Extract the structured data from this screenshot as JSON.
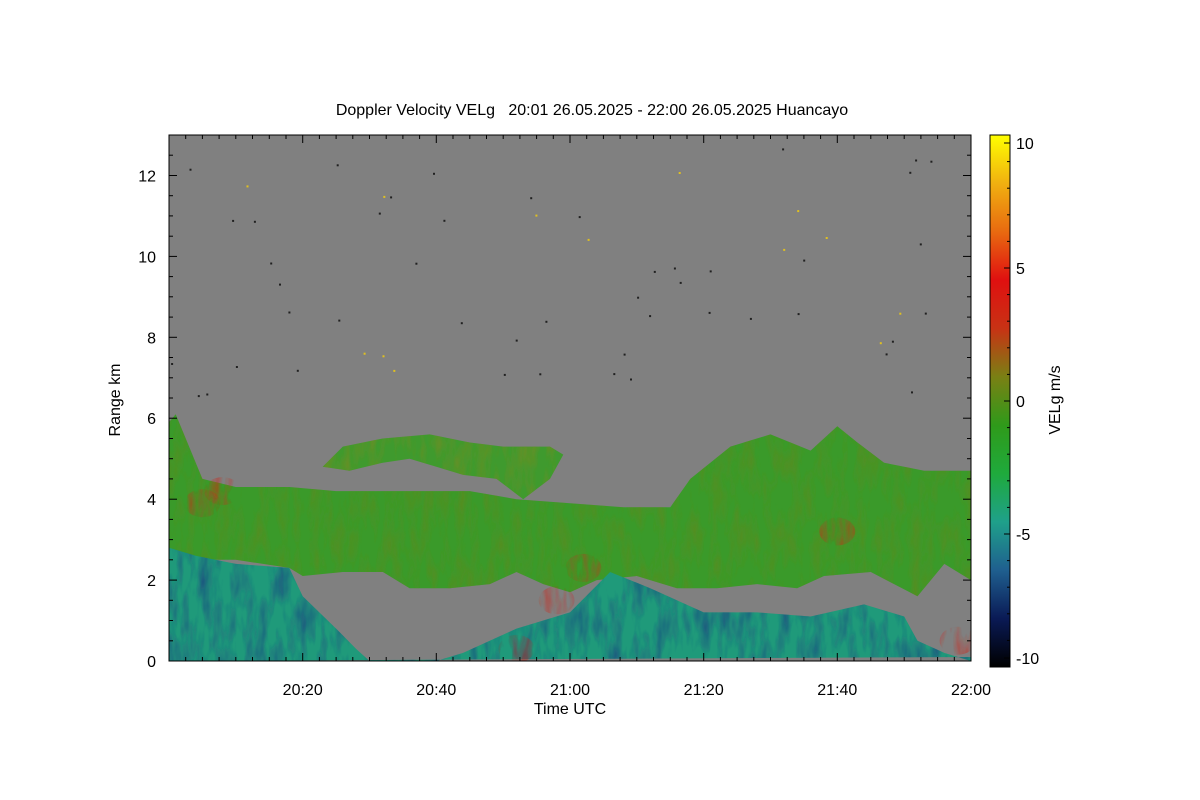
{
  "chart_data": {
    "type": "heatmap",
    "title": "Doppler Velocity VELg   20:01 26.05.2025 - 22:00 26.05.2025 Huancayo",
    "xlabel": "Time UTC",
    "ylabel": "Range km",
    "x_range_minutes": [
      0,
      120
    ],
    "x_ticks": [
      {
        "label": "20:20",
        "minute": 20
      },
      {
        "label": "20:40",
        "minute": 40
      },
      {
        "label": "21:00",
        "minute": 60
      },
      {
        "label": "21:20",
        "minute": 80
      },
      {
        "label": "21:40",
        "minute": 100
      },
      {
        "label": "22:00",
        "minute": 120
      }
    ],
    "ylim": [
      0,
      13
    ],
    "y_ticks": [
      "0",
      "2",
      "4",
      "6",
      "8",
      "10",
      "12"
    ],
    "colorbar": {
      "label": "VELg m/s",
      "range": [
        -10,
        10
      ],
      "ticks": [
        "10",
        "5",
        "0",
        "-5",
        "-10"
      ],
      "colormap": [
        "#000000",
        "#0a1a55",
        "#1f5f8f",
        "#1fa08a",
        "#1faa3c",
        "#2f9a1a",
        "#7a8014",
        "#c83214",
        "#e01010",
        "#e86a10",
        "#f0b010",
        "#ffff00"
      ]
    },
    "background_color": "#808080",
    "series": [
      {
        "region": "main cloud layer",
        "dominant_velocity": "near 0 to -2 m/s",
        "points": [
          [
            0,
            5.9
          ],
          [
            1,
            6.1
          ],
          [
            5,
            4.5
          ],
          [
            10,
            4.3
          ],
          [
            18,
            4.3
          ],
          [
            25,
            4.2
          ],
          [
            35,
            4.2
          ],
          [
            45,
            4.2
          ],
          [
            52,
            4.0
          ],
          [
            60,
            3.9
          ],
          [
            68,
            3.8
          ],
          [
            75,
            3.8
          ],
          [
            78,
            4.5
          ],
          [
            84,
            5.3
          ],
          [
            90,
            5.6
          ],
          [
            96,
            5.2
          ],
          [
            100,
            5.8
          ],
          [
            103,
            5.4
          ],
          [
            107,
            4.9
          ],
          [
            113,
            4.7
          ],
          [
            120,
            4.7
          ],
          [
            120,
            2.0
          ],
          [
            116,
            2.4
          ],
          [
            112,
            1.6
          ],
          [
            105,
            2.2
          ],
          [
            98,
            2.1
          ],
          [
            94,
            1.8
          ],
          [
            88,
            1.9
          ],
          [
            82,
            1.8
          ],
          [
            76,
            1.8
          ],
          [
            70,
            2.1
          ],
          [
            64,
            2.0
          ],
          [
            60,
            1.7
          ],
          [
            56,
            1.9
          ],
          [
            52,
            2.2
          ],
          [
            48,
            1.9
          ],
          [
            42,
            1.8
          ],
          [
            36,
            1.8
          ],
          [
            32,
            2.2
          ],
          [
            26,
            2.2
          ],
          [
            20,
            2.1
          ],
          [
            18,
            2.3
          ],
          [
            10,
            2.5
          ],
          [
            5,
            2.5
          ],
          [
            0,
            2.6
          ]
        ]
      },
      {
        "region": "upper cloud band",
        "dominant_velocity": "near 0 m/s",
        "points": [
          [
            23,
            4.8
          ],
          [
            26,
            5.3
          ],
          [
            32,
            5.5
          ],
          [
            39,
            5.6
          ],
          [
            45,
            5.4
          ],
          [
            50,
            5.3
          ],
          [
            57,
            5.3
          ],
          [
            59,
            5.1
          ],
          [
            57,
            4.5
          ],
          [
            53,
            4.0
          ],
          [
            49,
            4.5
          ],
          [
            44,
            4.6
          ],
          [
            40,
            4.8
          ],
          [
            36,
            5.0
          ],
          [
            32,
            4.9
          ],
          [
            27,
            4.7
          ]
        ]
      },
      {
        "region": "lower precipitation region",
        "dominant_velocity": "-3 to -8 m/s",
        "points": [
          [
            0,
            0
          ],
          [
            0,
            2.8
          ],
          [
            4,
            2.6
          ],
          [
            10,
            2.4
          ],
          [
            18,
            2.3
          ],
          [
            20,
            1.6
          ],
          [
            25,
            0.8
          ],
          [
            28,
            0.3
          ],
          [
            30,
            0
          ],
          [
            40,
            0
          ],
          [
            44,
            0.2
          ],
          [
            52,
            0.8
          ],
          [
            60,
            1.2
          ],
          [
            66,
            2.2
          ],
          [
            72,
            1.8
          ],
          [
            80,
            1.2
          ],
          [
            88,
            1.2
          ],
          [
            96,
            1.1
          ],
          [
            104,
            1.4
          ],
          [
            110,
            1.1
          ],
          [
            112,
            0.5
          ],
          [
            116,
            0.2
          ],
          [
            120,
            0
          ],
          [
            120,
            0.1
          ]
        ]
      },
      {
        "region": "positive velocity patches",
        "dominant_velocity": "+1 to +3 m/s",
        "points": [
          [
            5,
            3.9
          ],
          [
            8,
            4.2
          ],
          [
            52,
            0.3
          ],
          [
            58,
            1.5
          ],
          [
            62,
            2.3
          ],
          [
            100,
            3.2
          ],
          [
            118,
            0.5
          ]
        ]
      }
    ]
  }
}
